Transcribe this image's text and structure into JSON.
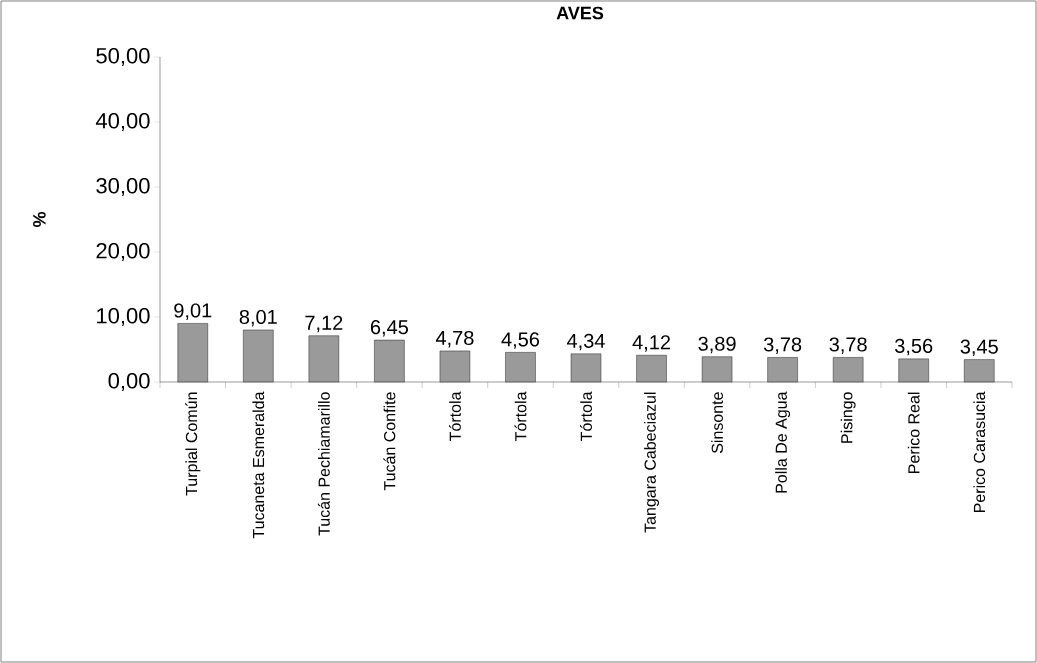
{
  "chart_data": {
    "type": "bar",
    "title": "AVES",
    "ylabel": "%",
    "categories": [
      "Turpial Común",
      "Tucaneta Esmeralda",
      "Tucán Pechiamarillo",
      "Tucán Confite",
      "Tórtola",
      "Tórtola",
      "Tórtola",
      "Tangara Cabeciazul",
      "Sinsonte",
      "Polla De Agua",
      "Pisingo",
      "Perico Real",
      "Perico Carasucia"
    ],
    "values": [
      9.01,
      8.01,
      7.12,
      6.45,
      4.78,
      4.56,
      4.34,
      4.12,
      3.89,
      3.78,
      3.78,
      3.56,
      3.45
    ],
    "value_labels": [
      "9,01",
      "8,01",
      "7,12",
      "6,45",
      "4,78",
      "4,56",
      "4,34",
      "4,12",
      "3,89",
      "3,78",
      "3,78",
      "3,56",
      "3,45"
    ],
    "color": "#9a9a9a",
    "ylim": [
      0,
      50
    ],
    "yticks": [
      {
        "value": 0,
        "label": "0,00"
      },
      {
        "value": 10,
        "label": "10,00"
      },
      {
        "value": 20,
        "label": "20,00"
      },
      {
        "value": 30,
        "label": "30,00"
      },
      {
        "value": 40,
        "label": "40,00"
      },
      {
        "value": 50,
        "label": "50,00"
      }
    ]
  }
}
